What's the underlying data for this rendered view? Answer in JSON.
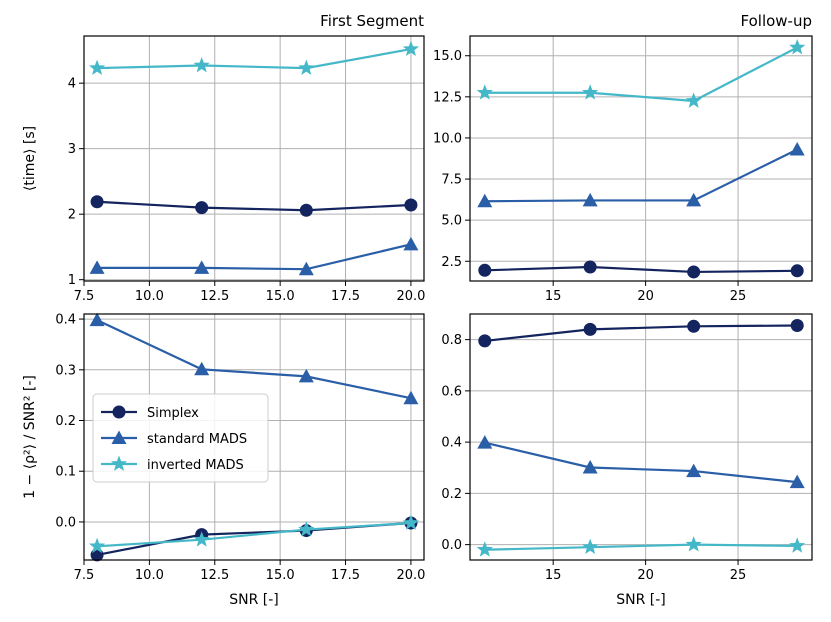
{
  "chart_data": [
    {
      "type": "line",
      "title": "First Segment",
      "title_align": "right",
      "xlabel": "",
      "ylabel": "⟨time⟩ [s]",
      "xlim": [
        7.5,
        20.5
      ],
      "ylim": [
        0.98,
        4.72
      ],
      "xticks": [
        7.5,
        10.0,
        12.5,
        15.0,
        17.5,
        20.0
      ],
      "xtick_labels": [
        "7.5",
        "10.0",
        "12.5",
        "15.0",
        "17.5",
        "20.0"
      ],
      "yticks": [
        1,
        2,
        3,
        4
      ],
      "ytick_labels": [
        "1",
        "2",
        "3",
        "4"
      ],
      "grid": true,
      "series": [
        {
          "name": "Simplex",
          "marker": "circle",
          "color": "#14245e",
          "x": [
            8,
            12,
            16,
            20
          ],
          "y": [
            2.19,
            2.1,
            2.06,
            2.14
          ]
        },
        {
          "name": "standard MADS",
          "marker": "triangle",
          "color": "#2a5fa8",
          "x": [
            8,
            12,
            16,
            20
          ],
          "y": [
            1.18,
            1.18,
            1.16,
            1.54
          ]
        },
        {
          "name": "inverted MADS",
          "marker": "star",
          "color": "#44b8c8",
          "x": [
            8,
            12,
            16,
            20
          ],
          "y": [
            4.23,
            4.27,
            4.23,
            4.52
          ]
        }
      ]
    },
    {
      "type": "line",
      "title": "Follow-up",
      "title_align": "right",
      "xlabel": "",
      "ylabel": "",
      "xlim": [
        10.5,
        29.0
      ],
      "ylim": [
        1.3,
        16.2
      ],
      "xticks": [
        15,
        20,
        25
      ],
      "xtick_labels": [
        "15",
        "20",
        "25"
      ],
      "yticks": [
        2.5,
        5.0,
        7.5,
        10.0,
        12.5,
        15.0
      ],
      "ytick_labels": [
        "2.5",
        "5.0",
        "7.5",
        "10.0",
        "12.5",
        "15.0"
      ],
      "grid": true,
      "series": [
        {
          "name": "Simplex",
          "marker": "circle",
          "color": "#14245e",
          "x": [
            11.3,
            17.0,
            22.6,
            28.2
          ],
          "y": [
            1.95,
            2.15,
            1.85,
            1.92
          ]
        },
        {
          "name": "standard MADS",
          "marker": "triangle",
          "color": "#2a5fa8",
          "x": [
            11.3,
            17.0,
            22.6,
            28.2
          ],
          "y": [
            6.15,
            6.2,
            6.2,
            9.3
          ]
        },
        {
          "name": "inverted MADS",
          "marker": "star",
          "color": "#44b8c8",
          "x": [
            11.3,
            17.0,
            22.6,
            28.2
          ],
          "y": [
            12.75,
            12.75,
            12.25,
            15.5
          ]
        }
      ]
    },
    {
      "type": "line",
      "title": "",
      "xlabel": "SNR [-]",
      "ylabel": "1 − ⟨ρ²⟩ / SNR² [-]",
      "xlim": [
        7.5,
        20.5
      ],
      "ylim": [
        -0.075,
        0.41
      ],
      "xticks": [
        7.5,
        10.0,
        12.5,
        15.0,
        17.5,
        20.0
      ],
      "xtick_labels": [
        "7.5",
        "10.0",
        "12.5",
        "15.0",
        "17.5",
        "20.0"
      ],
      "yticks": [
        0.0,
        0.1,
        0.2,
        0.3,
        0.4
      ],
      "ytick_labels": [
        "0.0",
        "0.1",
        "0.2",
        "0.3",
        "0.4"
      ],
      "grid": true,
      "legend_position": "center-left",
      "series": [
        {
          "name": "Simplex",
          "marker": "circle",
          "color": "#14245e",
          "x": [
            8,
            12,
            16,
            20
          ],
          "y": [
            -0.065,
            -0.025,
            -0.017,
            -0.002
          ]
        },
        {
          "name": "standard MADS",
          "marker": "triangle",
          "color": "#2a5fa8",
          "x": [
            8,
            12,
            16,
            20
          ],
          "y": [
            0.398,
            0.301,
            0.287,
            0.244
          ]
        },
        {
          "name": "inverted MADS",
          "marker": "star",
          "color": "#44b8c8",
          "x": [
            8,
            12,
            16,
            20
          ],
          "y": [
            -0.048,
            -0.035,
            -0.015,
            -0.002
          ]
        }
      ]
    },
    {
      "type": "line",
      "title": "",
      "xlabel": "SNR [-]",
      "ylabel": "",
      "xlim": [
        10.5,
        29.0
      ],
      "ylim": [
        -0.06,
        0.9
      ],
      "xticks": [
        15,
        20,
        25
      ],
      "xtick_labels": [
        "15",
        "20",
        "25"
      ],
      "yticks": [
        0.0,
        0.2,
        0.4,
        0.6,
        0.8
      ],
      "ytick_labels": [
        "0.0",
        "0.2",
        "0.4",
        "0.6",
        "0.8"
      ],
      "grid": true,
      "series": [
        {
          "name": "Simplex",
          "marker": "circle",
          "color": "#14245e",
          "x": [
            11.3,
            17.0,
            22.6,
            28.2
          ],
          "y": [
            0.795,
            0.84,
            0.852,
            0.855
          ]
        },
        {
          "name": "standard MADS",
          "marker": "triangle",
          "color": "#2a5fa8",
          "x": [
            11.3,
            17.0,
            22.6,
            28.2
          ],
          "y": [
            0.398,
            0.301,
            0.287,
            0.244
          ]
        },
        {
          "name": "inverted MADS",
          "marker": "star",
          "color": "#44b8c8",
          "x": [
            11.3,
            17.0,
            22.6,
            28.2
          ],
          "y": [
            -0.02,
            -0.01,
            0.0,
            -0.005
          ]
        }
      ]
    }
  ]
}
